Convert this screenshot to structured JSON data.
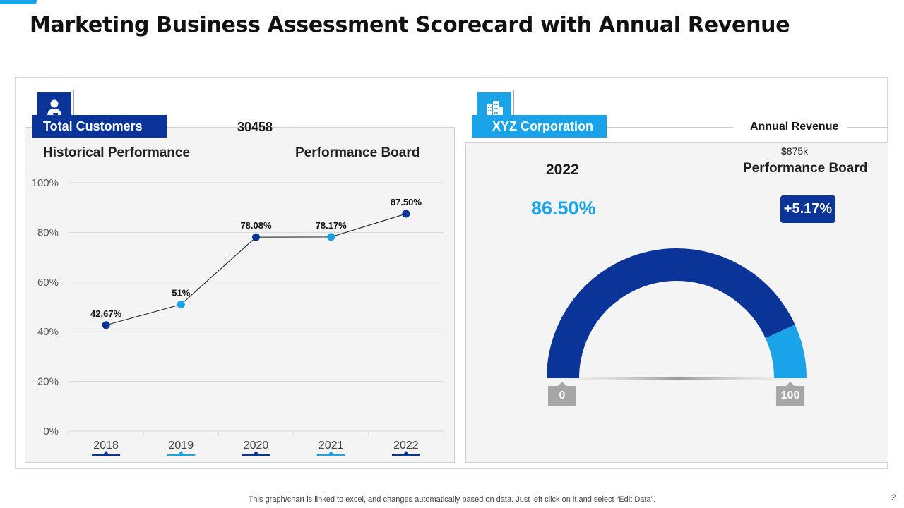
{
  "title": "Marketing Business Assessment Scorecard with Annual Revenue",
  "left_panel": {
    "tab_label": "Total Customers",
    "value": "30458",
    "historical_heading": "Historical Performance",
    "board_heading": "Performance Board",
    "icon": "customer-cart-icon"
  },
  "right_panel": {
    "tab_label": "XYZ Corporation",
    "annual_label": "Annual Revenue",
    "annual_value": "$875k",
    "year": "2022",
    "board_heading": "Performance Board",
    "percent": "86.50%",
    "change": "+5.17%",
    "gauge_min": "0",
    "gauge_max": "100",
    "icon": "building-icon"
  },
  "colors": {
    "dark_blue": "#0b3499",
    "light_blue": "#1aa3e8"
  },
  "chart_data": [
    {
      "type": "line",
      "categories": [
        "2018",
        "2019",
        "2020",
        "2021",
        "2022"
      ],
      "values": [
        42.67,
        51,
        78.08,
        78.17,
        87.5
      ],
      "data_labels": [
        "42.67%",
        "51%",
        "78.08%",
        "78.17%",
        "87.50%"
      ],
      "point_colors": [
        "#0b3499",
        "#1aa3e8",
        "#0b3499",
        "#1aa3e8",
        "#0b3499"
      ],
      "yticks": [
        "0%",
        "20%",
        "40%",
        "60%",
        "80%",
        "100%"
      ],
      "ylim": [
        0,
        100
      ],
      "grid": true
    },
    {
      "type": "gauge",
      "value": 86.5,
      "range": [
        0,
        100
      ],
      "colors": [
        "#0b3499",
        "#1aa3e8"
      ]
    }
  ],
  "footnote": "This graph/chart is linked to excel,  and changes automatically based on data. Just left click on it and select “Edit Data”.",
  "page_number": "2"
}
